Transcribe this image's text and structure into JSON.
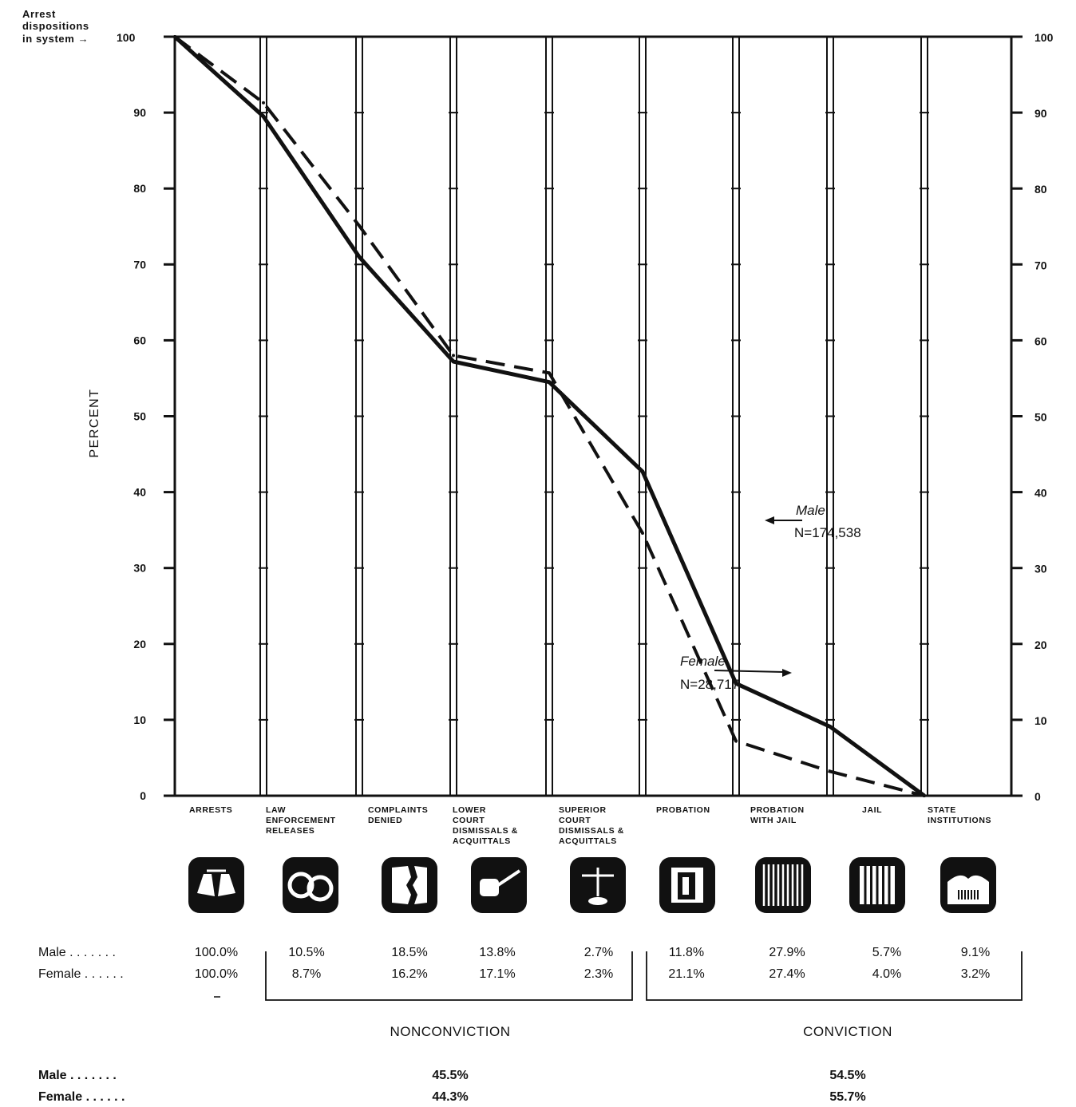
{
  "chart_data": {
    "type": "line",
    "ylabel": "PERCENT",
    "ylim": [
      0,
      100
    ],
    "y_ticks": [
      "0",
      "10",
      "20",
      "30",
      "40",
      "50",
      "60",
      "70",
      "80",
      "90",
      "100"
    ],
    "arrest_label": [
      "Arrest",
      "dispositions",
      "in system"
    ],
    "categories": [
      [
        "ARRESTS"
      ],
      [
        "LAW",
        "ENFORCEMENT",
        "RELEASES"
      ],
      [
        "COMPLAINTS",
        "DENIED"
      ],
      [
        "LOWER",
        "COURT",
        "DISMISSALS &",
        "ACQUITTALS"
      ],
      [
        "SUPERIOR",
        "COURT",
        "DISMISSALS &",
        "ACQUITTALS"
      ],
      [
        "PROBATION"
      ],
      [
        "PROBATION",
        "WITH JAIL"
      ],
      [
        "JAIL"
      ],
      [
        "STATE",
        "INSTITUTIONS"
      ]
    ],
    "icons": [
      "handcuffed-hands-icon",
      "handcuffs-icon",
      "torn-paper-icon",
      "gavel-icon",
      "scales-icon",
      "door-icon",
      "barred-window-icon",
      "jail-bars-icon",
      "prison-building-icon"
    ],
    "x_boundaries": [
      "Arrests",
      "After law enforcement releases",
      "After complaints denied",
      "After lower court",
      "After superior court",
      "After probation",
      "After probation with jail",
      "After jail",
      "After state institutions"
    ],
    "series": [
      {
        "name": "Male",
        "n_label": "N=174,538",
        "style": "solid",
        "values": [
          100,
          89.5,
          71.0,
          57.2,
          54.5,
          42.7,
          14.8,
          9.1,
          0
        ]
      },
      {
        "name": "Female",
        "n_label": "N=28,717",
        "style": "dashed",
        "values": [
          100,
          91.3,
          75.1,
          58.0,
          55.7,
          34.6,
          7.2,
          3.2,
          0
        ]
      }
    ],
    "table": {
      "rows": [
        {
          "label": "Male . . . . . . .",
          "values": [
            "100.0%",
            "10.5%",
            "18.5%",
            "13.8%",
            "2.7%",
            "11.8%",
            "27.9%",
            "5.7%",
            "9.1%"
          ]
        },
        {
          "label": "Female . . . . . .",
          "values": [
            "100.0%",
            "8.7%",
            "16.2%",
            "17.1%",
            "2.3%",
            "21.1%",
            "27.4%",
            "4.0%",
            "3.2%"
          ]
        }
      ]
    },
    "groups": [
      {
        "label": "NONCONVICTION",
        "male": "45.5%",
        "female": "44.3%"
      },
      {
        "label": "CONVICTION",
        "male": "54.5%",
        "female": "55.7%"
      }
    ],
    "summary_row_labels": [
      "Male . . . . . . .",
      "Female . . . . . ."
    ],
    "colors": {
      "ink": "#111111",
      "background": "#ffffff"
    }
  }
}
